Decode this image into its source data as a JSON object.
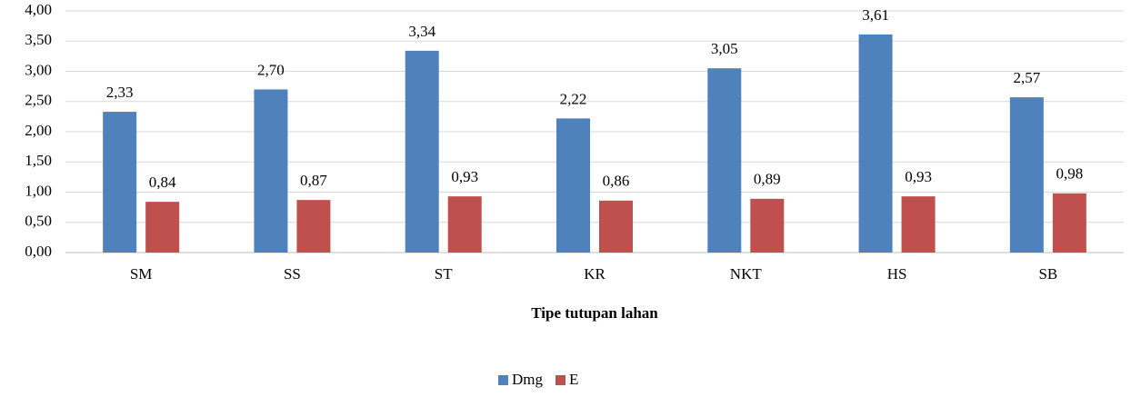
{
  "chart_data": {
    "type": "bar",
    "x_label": "Tipe tutupan lahan",
    "categories": [
      "SM",
      "SS",
      "ST",
      "KR",
      "NKT",
      "HS",
      "SB"
    ],
    "series": [
      {
        "name": "Dmg",
        "color": "#4f81bd",
        "values": [
          2.33,
          2.7,
          3.34,
          2.22,
          3.05,
          3.61,
          2.57
        ],
        "value_labels": [
          "2,33",
          "2,70",
          "3,34",
          "2,22",
          "3,05",
          "3,61",
          "2,57"
        ]
      },
      {
        "name": "E",
        "color": "#c0504d",
        "values": [
          0.84,
          0.87,
          0.93,
          0.86,
          0.89,
          0.93,
          0.98
        ],
        "value_labels": [
          "0,84",
          "0,87",
          "0,93",
          "0,86",
          "0,89",
          "0,93",
          "0,98"
        ]
      }
    ],
    "ylim": [
      0,
      4
    ],
    "yticks": [
      {
        "value": 0,
        "label": "0,00"
      },
      {
        "value": 0.5,
        "label": "0,50"
      },
      {
        "value": 1,
        "label": "1,00"
      },
      {
        "value": 1.5,
        "label": "1,50"
      },
      {
        "value": 2,
        "label": "2,00"
      },
      {
        "value": 2.5,
        "label": "2,50"
      },
      {
        "value": 3,
        "label": "3,00"
      },
      {
        "value": 3.5,
        "label": "3,50"
      },
      {
        "value": 4,
        "label": "4,00"
      }
    ],
    "grid": true,
    "legend": "bottom"
  }
}
